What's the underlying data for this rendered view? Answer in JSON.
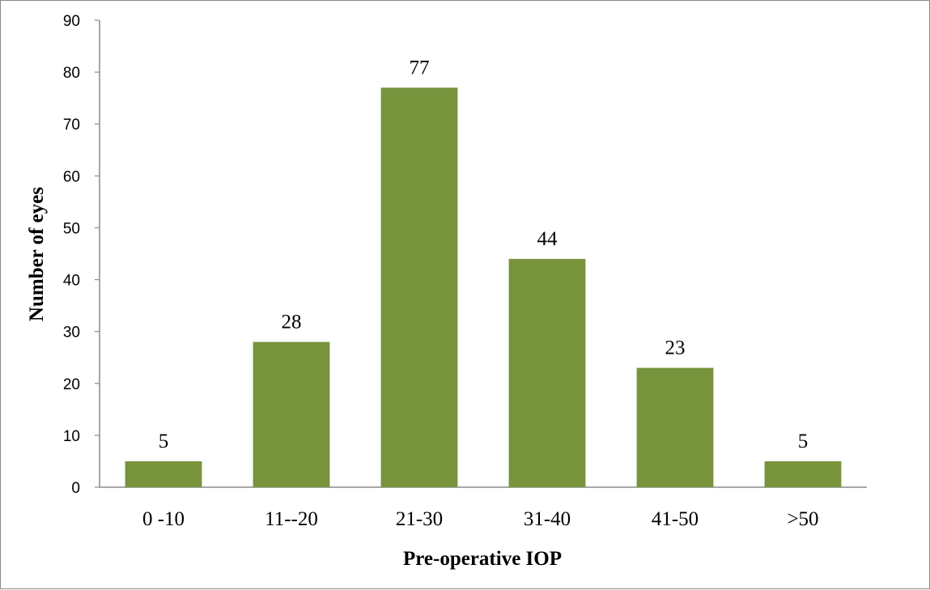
{
  "chart_data": {
    "type": "bar",
    "categories": [
      "0 -10",
      "11--20",
      "21-30",
      "31-40",
      "41-50",
      ">50"
    ],
    "values": [
      5,
      28,
      77,
      44,
      23,
      5
    ],
    "data_labels": [
      "5",
      "28",
      "77",
      "44",
      "23",
      "5"
    ],
    "title": "",
    "xlabel": "Pre-operative IOP",
    "ylabel": "Number of eyes",
    "ylim": [
      0,
      90
    ],
    "yticks": [
      0,
      10,
      20,
      30,
      40,
      50,
      60,
      70,
      80,
      90
    ],
    "bar_color": "#77933c",
    "grid": false,
    "legend": "none"
  }
}
